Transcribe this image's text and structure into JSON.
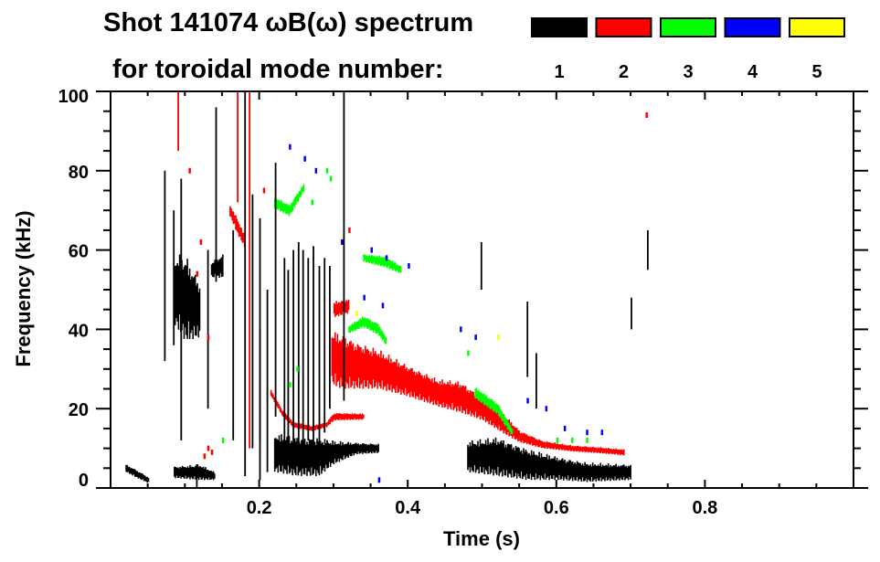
{
  "chart_data": {
    "type": "heatmap",
    "title_line1": "Shot 141074 ωB(ω) spectrum",
    "title_line2": "for toroidal mode number:",
    "xlabel": "Time (s)",
    "ylabel": "Frequency (kHz)",
    "xlim": [
      0,
      1.0
    ],
    "ylim": [
      0,
      100
    ],
    "x_ticks": [
      {
        "value": 0.2,
        "label": "0.2"
      },
      {
        "value": 0.4,
        "label": "0.4"
      },
      {
        "value": 0.6,
        "label": "0.6"
      },
      {
        "value": 0.8,
        "label": "0.8"
      }
    ],
    "y_ticks": [
      {
        "value": 0,
        "label": "0"
      },
      {
        "value": 20,
        "label": "20"
      },
      {
        "value": 40,
        "label": "40"
      },
      {
        "value": 60,
        "label": "60"
      },
      {
        "value": 80,
        "label": "80"
      },
      {
        "value": 100,
        "label": "100"
      }
    ],
    "x_minor_step": 0.05,
    "y_minor_step": 5,
    "legend": [
      {
        "mode": "1",
        "color": "#000000"
      },
      {
        "mode": "2",
        "color": "#ff0000"
      },
      {
        "mode": "3",
        "color": "#00ff00"
      },
      {
        "mode": "4",
        "color": "#0000ff"
      },
      {
        "mode": "5",
        "color": "#ffff00"
      }
    ],
    "bands": [
      {
        "mode": 2,
        "knots": [
          [
            0.297,
            33,
            7
          ],
          [
            0.31,
            32,
            7
          ],
          [
            0.33,
            31,
            6
          ],
          [
            0.36,
            30,
            5
          ],
          [
            0.4,
            27,
            4
          ],
          [
            0.44,
            24,
            3.5
          ],
          [
            0.47,
            23,
            4
          ],
          [
            0.5,
            20,
            3
          ],
          [
            0.53,
            16,
            2.5
          ],
          [
            0.55,
            13,
            1.5
          ],
          [
            0.58,
            11,
            1
          ],
          [
            0.62,
            10,
            0.8
          ],
          [
            0.66,
            9.5,
            0.8
          ],
          [
            0.69,
            9,
            0.8
          ]
        ]
      },
      {
        "mode": 2,
        "knots": [
          [
            0.215,
            24,
            0.8
          ],
          [
            0.23,
            19,
            0.8
          ],
          [
            0.245,
            16,
            0.8
          ],
          [
            0.27,
            15,
            0.7
          ],
          [
            0.29,
            16,
            0.7
          ],
          [
            0.3,
            18,
            1
          ],
          [
            0.34,
            18,
            0.8
          ]
        ]
      },
      {
        "mode": 2,
        "knots": [
          [
            0.3,
            45,
            2
          ],
          [
            0.32,
            46,
            2
          ]
        ]
      },
      {
        "mode": 2,
        "knots": [
          [
            0.16,
            70,
            1.5
          ],
          [
            0.17,
            66,
            2
          ],
          [
            0.18,
            62,
            1.5
          ]
        ]
      },
      {
        "mode": 1,
        "knots": [
          [
            0.22,
            9,
            5
          ],
          [
            0.25,
            8,
            5
          ],
          [
            0.28,
            8,
            5
          ],
          [
            0.3,
            9,
            3
          ],
          [
            0.33,
            10,
            1.5
          ],
          [
            0.36,
            10,
            1.2
          ]
        ]
      },
      {
        "mode": 1,
        "knots": [
          [
            0.48,
            8,
            4
          ],
          [
            0.52,
            8,
            5
          ],
          [
            0.56,
            6,
            4
          ],
          [
            0.6,
            5,
            3
          ],
          [
            0.64,
            4,
            2.5
          ],
          [
            0.7,
            4,
            2
          ]
        ]
      },
      {
        "mode": 1,
        "knots": [
          [
            0.02,
            5,
            1
          ],
          [
            0.035,
            3.5,
            1
          ],
          [
            0.05,
            2,
            0.8
          ]
        ]
      },
      {
        "mode": 1,
        "knots": [
          [
            0.085,
            4,
            1.5
          ],
          [
            0.12,
            4,
            2
          ],
          [
            0.14,
            3,
            1
          ]
        ]
      },
      {
        "mode": 1,
        "knots": [
          [
            0.086,
            50,
            9
          ],
          [
            0.1,
            48,
            11
          ],
          [
            0.119,
            45,
            7
          ]
        ]
      },
      {
        "mode": 1,
        "knots": [
          [
            0.135,
            55,
            2
          ],
          [
            0.15,
            56,
            3
          ]
        ]
      },
      {
        "mode": 3,
        "knots": [
          [
            0.32,
            40,
            1
          ],
          [
            0.34,
            42,
            1.5
          ],
          [
            0.36,
            40,
            1.5
          ],
          [
            0.37,
            37,
            1
          ]
        ]
      },
      {
        "mode": 3,
        "knots": [
          [
            0.34,
            58,
            1
          ],
          [
            0.37,
            57,
            1.5
          ],
          [
            0.39,
            55,
            1
          ]
        ]
      },
      {
        "mode": 3,
        "knots": [
          [
            0.49,
            24,
            1.5
          ],
          [
            0.52,
            20,
            1.5
          ],
          [
            0.54,
            14,
            1
          ]
        ]
      },
      {
        "mode": 3,
        "knots": [
          [
            0.22,
            72,
            1.5
          ],
          [
            0.24,
            70,
            1.5
          ],
          [
            0.26,
            76,
            1
          ]
        ]
      }
    ],
    "spikes": [
      [
        0.072,
        32,
        80,
        1
      ],
      [
        0.084,
        36,
        70,
        1
      ],
      [
        0.094,
        12,
        78,
        1
      ],
      [
        0.141,
        52,
        96,
        1
      ],
      [
        0.164,
        12,
        65,
        1
      ],
      [
        0.18,
        3,
        100,
        1
      ],
      [
        0.19,
        10,
        74,
        1
      ],
      [
        0.2,
        12,
        68,
        1
      ],
      [
        0.221,
        18,
        82,
        1
      ],
      [
        0.233,
        5,
        58,
        1
      ],
      [
        0.238,
        8,
        55,
        1
      ],
      [
        0.245,
        6,
        60,
        1
      ],
      [
        0.252,
        8,
        62,
        1
      ],
      [
        0.258,
        10,
        60,
        1
      ],
      [
        0.265,
        12,
        58,
        1
      ],
      [
        0.272,
        10,
        61,
        1
      ],
      [
        0.28,
        12,
        56,
        1
      ],
      [
        0.287,
        14,
        58,
        1
      ],
      [
        0.294,
        20,
        56,
        1
      ],
      [
        0.313,
        22,
        100,
        1
      ],
      [
        0.2,
        2,
        40,
        1
      ],
      [
        0.21,
        4,
        50,
        1
      ],
      [
        0.498,
        50,
        62,
        1
      ],
      [
        0.56,
        28,
        47,
        1
      ],
      [
        0.572,
        20,
        34,
        1
      ],
      [
        0.722,
        55,
        65,
        1
      ],
      [
        0.7,
        40,
        48,
        1
      ],
      [
        0.17,
        72,
        100,
        2
      ],
      [
        0.186,
        40,
        100,
        2
      ],
      [
        0.186,
        10,
        40,
        2
      ],
      [
        0.09,
        85,
        100,
        2
      ],
      [
        0.115,
        0,
        6,
        1
      ],
      [
        0.13,
        20,
        60,
        1
      ]
    ],
    "dots": [
      [
        0.26,
        83,
        4
      ],
      [
        0.275,
        80,
        4
      ],
      [
        0.24,
        86,
        4
      ],
      [
        0.35,
        60,
        4
      ],
      [
        0.37,
        58,
        4
      ],
      [
        0.4,
        56,
        4
      ],
      [
        0.34,
        48,
        4
      ],
      [
        0.365,
        46,
        4
      ],
      [
        0.47,
        40,
        4
      ],
      [
        0.49,
        38,
        4
      ],
      [
        0.56,
        22,
        4
      ],
      [
        0.585,
        20,
        4
      ],
      [
        0.64,
        14,
        4
      ],
      [
        0.66,
        14,
        4
      ],
      [
        0.61,
        15,
        4
      ],
      [
        0.295,
        78,
        3
      ],
      [
        0.29,
        80,
        3
      ],
      [
        0.31,
        62,
        4
      ],
      [
        0.36,
        2,
        4
      ],
      [
        0.27,
        72,
        3
      ],
      [
        0.48,
        34,
        3
      ],
      [
        0.6,
        12,
        3
      ],
      [
        0.62,
        12,
        3
      ],
      [
        0.64,
        12,
        3
      ],
      [
        0.15,
        12,
        3
      ],
      [
        0.52,
        38,
        5
      ],
      [
        0.33,
        44,
        5
      ],
      [
        0.125,
        8,
        2
      ],
      [
        0.13,
        10,
        2
      ],
      [
        0.135,
        9,
        2
      ],
      [
        0.72,
        94,
        2
      ],
      [
        0.205,
        75,
        2
      ],
      [
        0.12,
        62,
        2
      ],
      [
        0.115,
        54,
        2
      ],
      [
        0.13,
        38,
        2
      ],
      [
        0.105,
        80,
        2
      ],
      [
        0.25,
        30,
        3
      ],
      [
        0.24,
        26,
        3
      ],
      [
        0.32,
        65,
        2
      ]
    ]
  }
}
